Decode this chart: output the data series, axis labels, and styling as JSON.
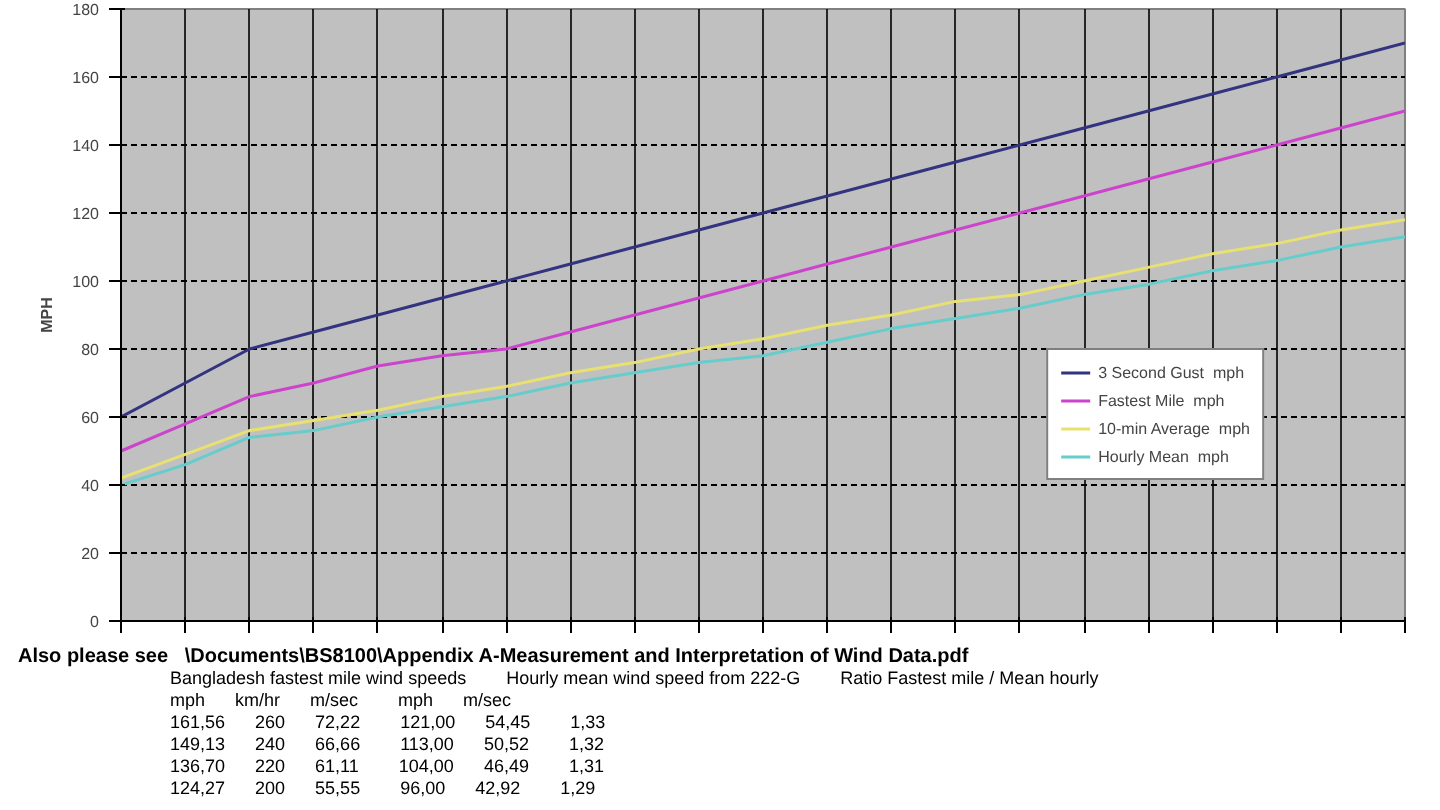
{
  "chart_data": {
    "type": "line",
    "ylabel": "MPH",
    "categories": [
      null,
      null,
      null,
      null,
      null,
      null,
      null,
      null,
      null,
      null,
      null,
      null,
      null,
      null,
      null,
      null,
      null,
      null,
      null,
      null,
      null
    ],
    "series": [
      {
        "name": "3 Second Gust  mph",
        "color": "#333380",
        "values": [
          60,
          70,
          80,
          85,
          90,
          95,
          100,
          105,
          110,
          115,
          120,
          125,
          130,
          135,
          140,
          145,
          150,
          155,
          160,
          165,
          170
        ]
      },
      {
        "name": "Fastest Mile  mph",
        "color": "#cc44cc",
        "values": [
          50,
          58,
          66,
          70,
          75,
          78,
          80,
          85,
          90,
          95,
          100,
          105,
          110,
          115,
          120,
          125,
          130,
          135,
          140,
          145,
          150
        ]
      },
      {
        "name": "10-min Average  mph",
        "color": "#e8e070",
        "values": [
          42,
          49,
          56,
          59,
          62,
          66,
          69,
          73,
          76,
          80,
          83,
          87,
          90,
          94,
          96,
          100,
          104,
          108,
          111,
          115,
          118
        ]
      },
      {
        "name": "Hourly Mean  mph",
        "color": "#66cccc",
        "values": [
          40,
          46,
          54,
          56,
          60,
          63,
          66,
          70,
          73,
          76,
          78,
          82,
          86,
          89,
          92,
          96,
          99,
          103,
          106,
          110,
          113
        ]
      }
    ],
    "ylim": [
      0,
      180
    ],
    "yticks": [
      0,
      20,
      40,
      60,
      80,
      100,
      120,
      140,
      160,
      180
    ],
    "grid": true,
    "legend": "bottom right",
    "tick_labels": "y",
    "marker": "none",
    "line_style": "solid",
    "annotations": [
      "Also please see   \\Documents\\BS8100\\Appendix A-Measurement and Interpretation of Wind Data.pdf",
      "Bangladesh fastest mile wind speeds        Hourly mean wind speed from 222-G        Ratio Fastest mile / Mean hourly",
      "mph      km/hr      m/sec        mph      m/sec",
      "161,56      260      72,22        121,00      54,45        1,33",
      "149,13      240      66,66        113,00      50,52        1,32",
      "136,70      220      61,11        104,00      46,49        1,31",
      "124,27      200      55,55        96,00      42,92        1,29"
    ]
  }
}
